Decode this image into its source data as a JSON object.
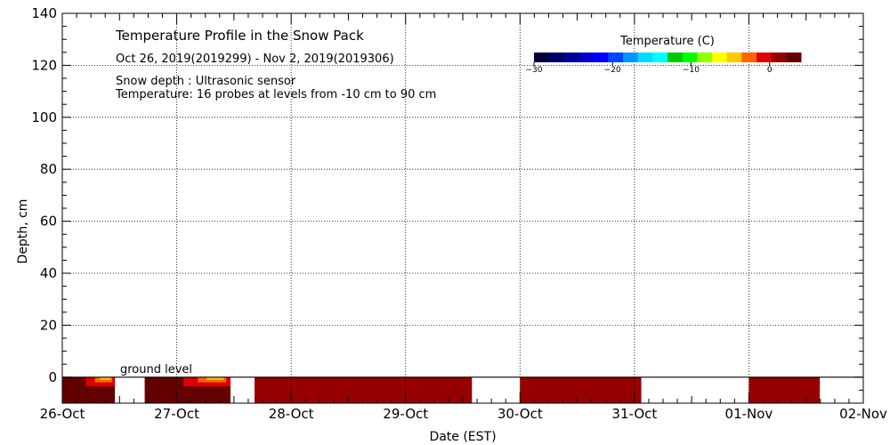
{
  "chart_data": {
    "type": "heatmap",
    "title": "Temperature Profile in the Snow Pack",
    "date_range": "Oct 26, 2019(2019299) - Nov  2, 2019(2019306)",
    "notes": [
      "Snow depth : Ultrasonic sensor",
      "Temperature: 16 probes at levels from -10 cm to 90 cm"
    ],
    "xlabel": "Date (EST)",
    "ylabel": "Depth, cm",
    "x_ticks": [
      "26-Oct",
      "27-Oct",
      "28-Oct",
      "29-Oct",
      "30-Oct",
      "31-Oct",
      "01-Nov",
      "02-Nov"
    ],
    "y_ticks": [
      0,
      20,
      40,
      60,
      80,
      100,
      120,
      140
    ],
    "ylim": [
      -10,
      140
    ],
    "xlim_days": [
      0,
      7
    ],
    "grid": true,
    "ground_label": "ground level",
    "colorbar": {
      "title": "Temperature (C)",
      "ticks": [
        -30,
        -20,
        -10,
        0
      ],
      "range": [
        -30,
        4
      ],
      "colors": [
        "#00003c",
        "#000064",
        "#000096",
        "#0000c8",
        "#0000ff",
        "#0046ff",
        "#0096ff",
        "#00dcff",
        "#00ffff",
        "#00c800",
        "#00ff00",
        "#96ff00",
        "#ffff00",
        "#ffc800",
        "#ff6400",
        "#dc0000",
        "#960000",
        "#640000"
      ]
    },
    "temperature_segments": [
      {
        "start_day": 0.0,
        "end_day": 0.46,
        "temperature_c": 2.5,
        "warm_top": true
      },
      {
        "start_day": 0.72,
        "end_day": 1.47,
        "temperature_c": 3.0,
        "warm_top": true
      },
      {
        "start_day": 1.68,
        "end_day": 3.58,
        "temperature_c": 2.0,
        "warm_top": false
      },
      {
        "start_day": 4.0,
        "end_day": 5.06,
        "temperature_c": 2.0,
        "warm_top": false
      },
      {
        "start_day": 6.0,
        "end_day": 6.62,
        "temperature_c": 2.0,
        "warm_top": false
      }
    ],
    "snow_depth_cm": 0
  }
}
